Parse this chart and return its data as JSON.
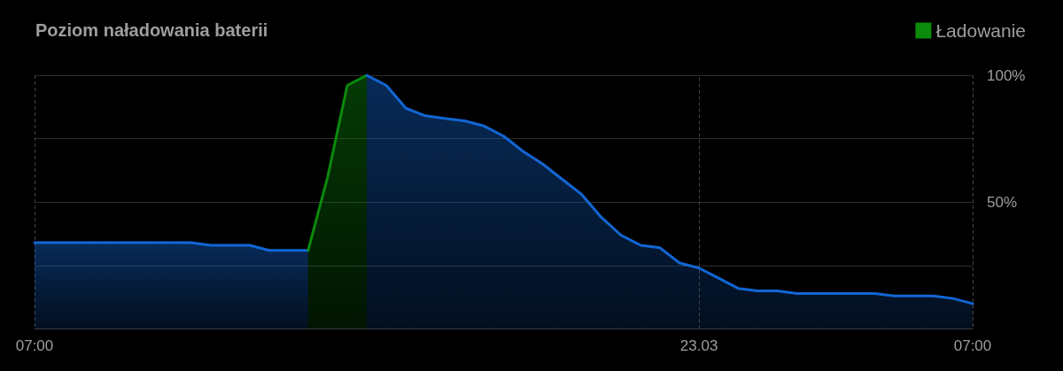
{
  "chart_data": {
    "type": "area",
    "title": "Poziom naładowania baterii",
    "series": [
      {
        "color": "#1266d4",
        "x": [
          "--03-22T07:00",
          "--03-22T07:30",
          "--03-22T08:00",
          "--03-22T08:30",
          "--03-22T09:00",
          "--03-22T09:30",
          "--03-22T10:00",
          "--03-22T10:30",
          "--03-22T11:00",
          "--03-22T11:30",
          "--03-22T12:00",
          "--03-22T12:30",
          "--03-22T13:00",
          "--03-22T13:30",
          "--03-22T14:00"
        ],
        "values": [
          34,
          34,
          34,
          34,
          34,
          34,
          34,
          34,
          34,
          33,
          33,
          33,
          31,
          31,
          31
        ]
      },
      {
        "name": "Ładowanie",
        "color": "#0b8a0b",
        "x": [
          "--03-22T14:00",
          "--03-22T14:30",
          "--03-22T15:00",
          "--03-22T15:30"
        ],
        "values": [
          31,
          60,
          96,
          100
        ]
      },
      {
        "color": "#1266d4",
        "x": [
          "--03-22T15:30",
          "--03-22T16:00",
          "--03-22T16:30",
          "--03-22T17:00",
          "--03-22T17:30",
          "--03-22T18:00",
          "--03-22T18:30",
          "--03-22T19:00",
          "--03-22T19:30",
          "--03-22T20:00",
          "--03-22T20:30",
          "--03-22T21:00",
          "--03-22T21:30",
          "--03-22T22:00",
          "--03-22T22:30",
          "--03-22T23:00",
          "--03-22T23:30",
          "--03-23T00:00",
          "--03-23T00:30",
          "--03-23T01:00",
          "--03-23T01:30",
          "--03-23T02:00",
          "--03-23T02:30",
          "--03-23T03:00",
          "--03-23T03:30",
          "--03-23T04:00",
          "--03-23T04:30",
          "--03-23T05:00",
          "--03-23T05:30",
          "--03-23T06:00",
          "--03-23T06:30",
          "--03-23T07:00"
        ],
        "values": [
          100,
          96,
          87,
          84,
          83,
          82,
          80,
          76,
          70,
          65,
          59,
          53,
          44,
          37,
          33,
          32,
          26,
          24,
          20,
          16,
          15,
          15,
          14,
          14,
          14,
          14,
          14,
          13,
          13,
          13,
          12,
          10
        ]
      }
    ],
    "xlim": [
      "--03-22T07:00",
      "--03-23T07:00"
    ],
    "xticks": [
      {
        "value": "--03-22T07:00",
        "label": "07:00"
      },
      {
        "value": "--03-23T00:00",
        "label": "23.03"
      },
      {
        "value": "--03-23T07:00",
        "label": "07:00"
      }
    ],
    "ylim": [
      0,
      100
    ],
    "yticks": [
      {
        "value": 0,
        "label": null
      },
      {
        "value": 25,
        "label": null
      },
      {
        "value": 50,
        "label": "50%"
      },
      {
        "value": 75,
        "label": null
      },
      {
        "value": 100,
        "label": "100%"
      }
    ],
    "ref_lines": [
      {
        "axis": "x",
        "value": "--03-23T00:00",
        "color": "#454545",
        "line_style": "dashed"
      }
    ],
    "grid": true,
    "legend": "top right",
    "marker": "none"
  }
}
